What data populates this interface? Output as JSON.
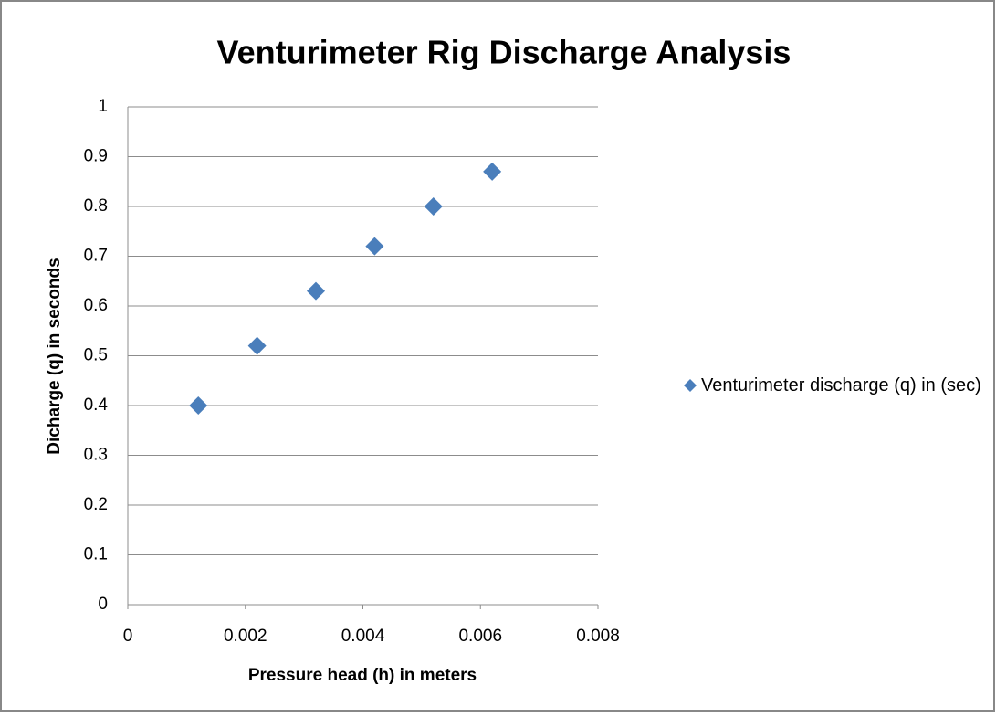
{
  "chart_data": {
    "type": "scatter",
    "title": "Venturimeter Rig Discharge Analysis",
    "x_label": "Pressure head (h) in meters",
    "y_label": "Dicharge (q) in seconds",
    "series": [
      {
        "name": "Venturimeter discharge (q) in (sec)",
        "color": "#4a7ebb",
        "x": [
          0.0012,
          0.0022,
          0.0032,
          0.0042,
          0.0052,
          0.0062
        ],
        "values": [
          0.4,
          0.52,
          0.63,
          0.72,
          0.8,
          0.87
        ]
      }
    ],
    "xlim": [
      0,
      0.008
    ],
    "xticks": [
      0,
      0.002,
      0.004,
      0.006,
      0.008
    ],
    "ylim": [
      0,
      1
    ],
    "yticks": [
      0,
      0.1,
      0.2,
      0.3,
      0.4,
      0.5,
      0.6,
      0.7,
      0.8,
      0.9,
      1
    ],
    "grid": true,
    "legend": "right"
  }
}
